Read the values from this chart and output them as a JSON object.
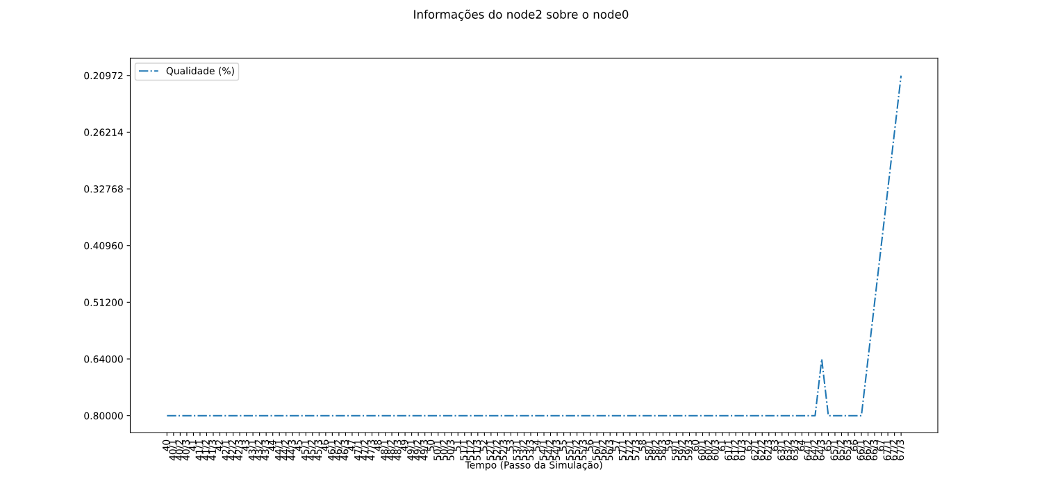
{
  "chart_data": {
    "type": "line",
    "title": "Informações do node2 sobre o node0",
    "xlabel": "Tempo (Passo da Simulação)",
    "categories": [
      "40",
      "40/1",
      "40/2",
      "40/3",
      "41",
      "41/1",
      "41/2",
      "41/3",
      "42",
      "42/1",
      "42/2",
      "42/3",
      "43",
      "43/1",
      "43/2",
      "43/3",
      "44",
      "44/1",
      "44/2",
      "44/3",
      "45",
      "45/1",
      "45/2",
      "45/3",
      "46",
      "46/1",
      "46/2",
      "46/3",
      "47",
      "47/1",
      "47/2",
      "47/3",
      "48",
      "48/1",
      "48/2",
      "48/3",
      "49",
      "49/1",
      "49/2",
      "49/3",
      "50",
      "50/1",
      "50/2",
      "50/3",
      "51",
      "51/1",
      "51/2",
      "51/3",
      "52",
      "52/1",
      "52/2",
      "52/3",
      "53",
      "53/1",
      "53/2",
      "53/3",
      "54",
      "54/1",
      "54/2",
      "54/3",
      "55",
      "55/1",
      "55/2",
      "55/3",
      "56",
      "56/1",
      "56/2",
      "56/3",
      "57",
      "57/1",
      "57/2",
      "57/3",
      "58",
      "58/1",
      "58/2",
      "58/3",
      "59",
      "59/1",
      "59/2",
      "59/3",
      "60",
      "60/1",
      "60/2",
      "60/3",
      "61",
      "61/1",
      "61/2",
      "61/3",
      "62",
      "62/1",
      "62/2",
      "62/3",
      "63",
      "63/1",
      "63/2",
      "63/3",
      "64",
      "64/1",
      "64/2",
      "64/3",
      "65",
      "65/1",
      "65/2",
      "65/3",
      "66",
      "66/1",
      "66/2",
      "66/3",
      "67",
      "67/1",
      "67/2",
      "67/3"
    ],
    "series": [
      {
        "name": "Qualidade (%)",
        "color": "#1f77b4",
        "values": [
          0.8,
          0.8,
          0.8,
          0.8,
          0.8,
          0.8,
          0.8,
          0.8,
          0.8,
          0.8,
          0.8,
          0.8,
          0.8,
          0.8,
          0.8,
          0.8,
          0.8,
          0.8,
          0.8,
          0.8,
          0.8,
          0.8,
          0.8,
          0.8,
          0.8,
          0.8,
          0.8,
          0.8,
          0.8,
          0.8,
          0.8,
          0.8,
          0.8,
          0.8,
          0.8,
          0.8,
          0.8,
          0.8,
          0.8,
          0.8,
          0.8,
          0.8,
          0.8,
          0.8,
          0.8,
          0.8,
          0.8,
          0.8,
          0.8,
          0.8,
          0.8,
          0.8,
          0.8,
          0.8,
          0.8,
          0.8,
          0.8,
          0.8,
          0.8,
          0.8,
          0.8,
          0.8,
          0.8,
          0.8,
          0.8,
          0.8,
          0.8,
          0.8,
          0.8,
          0.8,
          0.8,
          0.8,
          0.8,
          0.8,
          0.8,
          0.8,
          0.8,
          0.8,
          0.8,
          0.8,
          0.8,
          0.8,
          0.8,
          0.8,
          0.8,
          0.8,
          0.8,
          0.8,
          0.8,
          0.8,
          0.8,
          0.8,
          0.8,
          0.8,
          0.8,
          0.8,
          0.8,
          0.8,
          0.8,
          0.64,
          0.8,
          0.8,
          0.8,
          0.8,
          0.8,
          0.8,
          0.64,
          0.512,
          0.4096,
          0.32768,
          0.26214,
          0.20972
        ]
      }
    ],
    "ylim": [
      0.855,
      0.196
    ],
    "log": true,
    "yticks": [
      {
        "value": 0.8,
        "label": "0.80000"
      },
      {
        "value": 0.64,
        "label": "0.64000"
      },
      {
        "value": 0.512,
        "label": "0.51200"
      },
      {
        "value": 0.4096,
        "label": "0.40960"
      },
      {
        "value": 0.32768,
        "label": "0.32768"
      },
      {
        "value": 0.26214,
        "label": "0.26214"
      },
      {
        "value": 0.20972,
        "label": "0.20972"
      }
    ],
    "line_style": "dashdot",
    "marker": "none",
    "grid": false,
    "legend": "top left"
  }
}
